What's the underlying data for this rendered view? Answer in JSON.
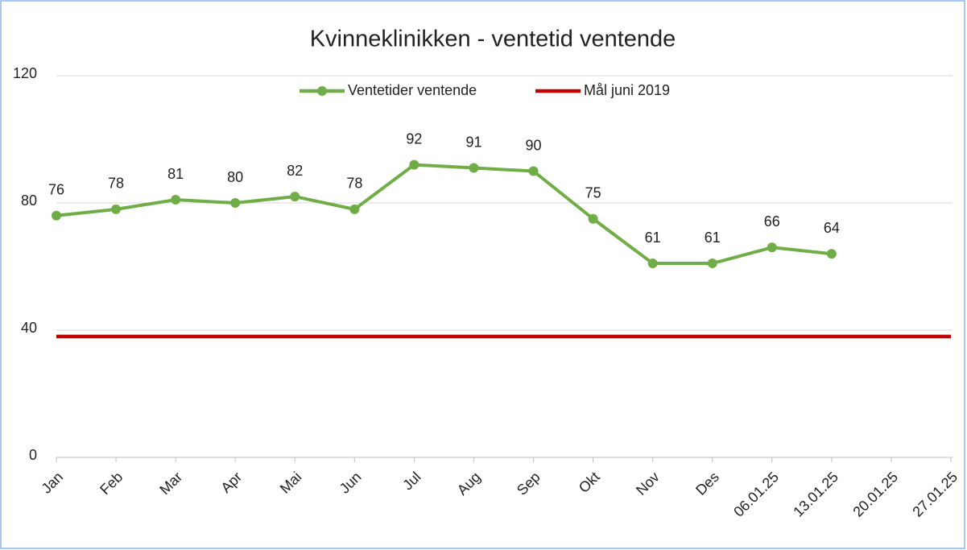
{
  "chart_data": {
    "type": "line",
    "title": "Kvinneklinikken - ventetid ventende",
    "categories": [
      "Jan",
      "Feb",
      "Mar",
      "Apr",
      "Mai",
      "Jun",
      "Jul",
      "Aug",
      "Sep",
      "Okt",
      "Nov",
      "Des",
      "06.01.25",
      "13.01.25",
      "20.01.25",
      "27.01.25"
    ],
    "series": [
      {
        "name": "Ventetider ventende",
        "color": "#70ad47",
        "values": [
          76,
          78,
          81,
          80,
          82,
          78,
          92,
          91,
          90,
          75,
          61,
          61,
          66,
          64,
          null,
          null
        ],
        "data_labels": true
      },
      {
        "name": "Mål juni 2019",
        "color": "#c00000",
        "values": [
          38,
          38,
          38,
          38,
          38,
          38,
          38,
          38,
          38,
          38,
          38,
          38,
          38,
          38,
          38,
          38
        ],
        "data_labels": false
      }
    ],
    "ylim": [
      0,
      120
    ],
    "yticks": [
      0,
      40,
      80,
      120
    ],
    "grid": true,
    "legend": "top"
  }
}
